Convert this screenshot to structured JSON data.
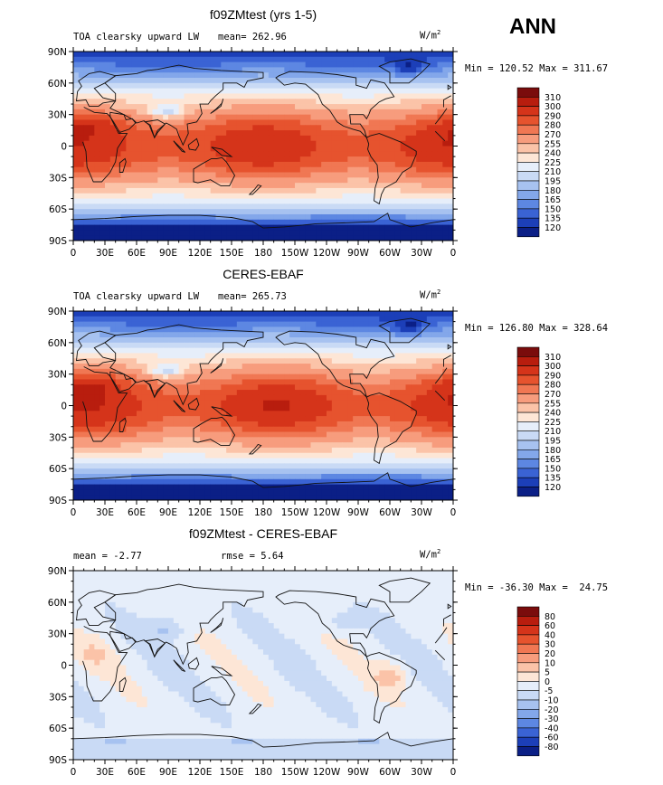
{
  "season": "ANN",
  "panels": [
    {
      "title": "f09ZMtest (yrs 1-5)",
      "left_label": "TOA clearsky upward LW",
      "center_label": "mean= 262.96",
      "units": "W/m",
      "units_sup": "2",
      "minmax": "Min = 120.52 Max = 311.67",
      "colorbar_levels": [
        "310",
        "300",
        "290",
        "280",
        "270",
        "255",
        "240",
        "225",
        "210",
        "195",
        "180",
        "165",
        "150",
        "135",
        "120"
      ],
      "colorbar_colors": [
        "#7a0c0c",
        "#b81d0e",
        "#d5341a",
        "#e6532e",
        "#f07753",
        "#f79c7d",
        "#fbc3a8",
        "#fde6d6",
        "#e6eefa",
        "#c9daf5",
        "#a7c2f0",
        "#83a7ea",
        "#5d87e2",
        "#3a63d4",
        "#1c3fb8",
        "#0b1f86"
      ],
      "type": "field"
    },
    {
      "title": "CERES-EBAF",
      "left_label": "TOA clearsky upward LW",
      "center_label": "mean= 265.73",
      "units": "W/m",
      "units_sup": "2",
      "minmax": "Min = 126.80 Max = 328.64",
      "colorbar_levels": [
        "310",
        "300",
        "290",
        "280",
        "270",
        "255",
        "240",
        "225",
        "210",
        "195",
        "180",
        "165",
        "150",
        "135",
        "120"
      ],
      "colorbar_colors": [
        "#7a0c0c",
        "#b81d0e",
        "#d5341a",
        "#e6532e",
        "#f07753",
        "#f79c7d",
        "#fbc3a8",
        "#fde6d6",
        "#e6eefa",
        "#c9daf5",
        "#a7c2f0",
        "#83a7ea",
        "#5d87e2",
        "#3a63d4",
        "#1c3fb8",
        "#0b1f86"
      ],
      "type": "field"
    },
    {
      "title": "f09ZMtest - CERES-EBAF",
      "left_label": "mean =   -2.77",
      "center_label": "rmse =    5.64",
      "units": "W/m",
      "units_sup": "2",
      "minmax": "Min = -36.30 Max =  24.75",
      "colorbar_levels": [
        "80",
        "60",
        "40",
        "30",
        "20",
        "10",
        "5",
        "0",
        "-5",
        "-10",
        "-20",
        "-30",
        "-40",
        "-60",
        "-80"
      ],
      "colorbar_colors": [
        "#7a0c0c",
        "#b81d0e",
        "#d5341a",
        "#e6532e",
        "#f07753",
        "#f79c7d",
        "#fbc3a8",
        "#fde6d6",
        "#e6eefa",
        "#c9daf5",
        "#a7c2f0",
        "#83a7ea",
        "#5d87e2",
        "#3a63d4",
        "#1c3fb8",
        "#0b1f86"
      ],
      "type": "diff"
    }
  ],
  "axes": {
    "y_ticks": [
      "90N",
      "60N",
      "30N",
      "0",
      "30S",
      "60S",
      "90S"
    ],
    "x_ticks": [
      "0",
      "30E",
      "60E",
      "90E",
      "120E",
      "150E",
      "180",
      "150W",
      "120W",
      "90W",
      "60W",
      "30W",
      "0"
    ]
  },
  "chart_data": [
    {
      "type": "heatmap",
      "title": "f09ZMtest (yrs 1-5)",
      "variable": "TOA clearsky upward LW",
      "units": "W/m^2",
      "mean": 262.96,
      "min": 120.52,
      "max": 311.67,
      "levels": [
        120,
        135,
        150,
        165,
        180,
        195,
        210,
        225,
        240,
        255,
        270,
        280,
        290,
        300,
        310
      ],
      "xlim": [
        0,
        360
      ],
      "ylim": [
        -90,
        90
      ]
    },
    {
      "type": "heatmap",
      "title": "CERES-EBAF",
      "variable": "TOA clearsky upward LW",
      "units": "W/m^2",
      "mean": 265.73,
      "min": 126.8,
      "max": 328.64,
      "levels": [
        120,
        135,
        150,
        165,
        180,
        195,
        210,
        225,
        240,
        255,
        270,
        280,
        290,
        300,
        310
      ],
      "xlim": [
        0,
        360
      ],
      "ylim": [
        -90,
        90
      ]
    },
    {
      "type": "heatmap",
      "title": "f09ZMtest - CERES-EBAF",
      "units": "W/m^2",
      "mean": -2.77,
      "rmse": 5.64,
      "min": -36.3,
      "max": 24.75,
      "levels": [
        -80,
        -60,
        -40,
        -30,
        -20,
        -10,
        -5,
        0,
        5,
        10,
        20,
        30,
        40,
        60,
        80
      ],
      "xlim": [
        0,
        360
      ],
      "ylim": [
        -90,
        90
      ]
    }
  ]
}
